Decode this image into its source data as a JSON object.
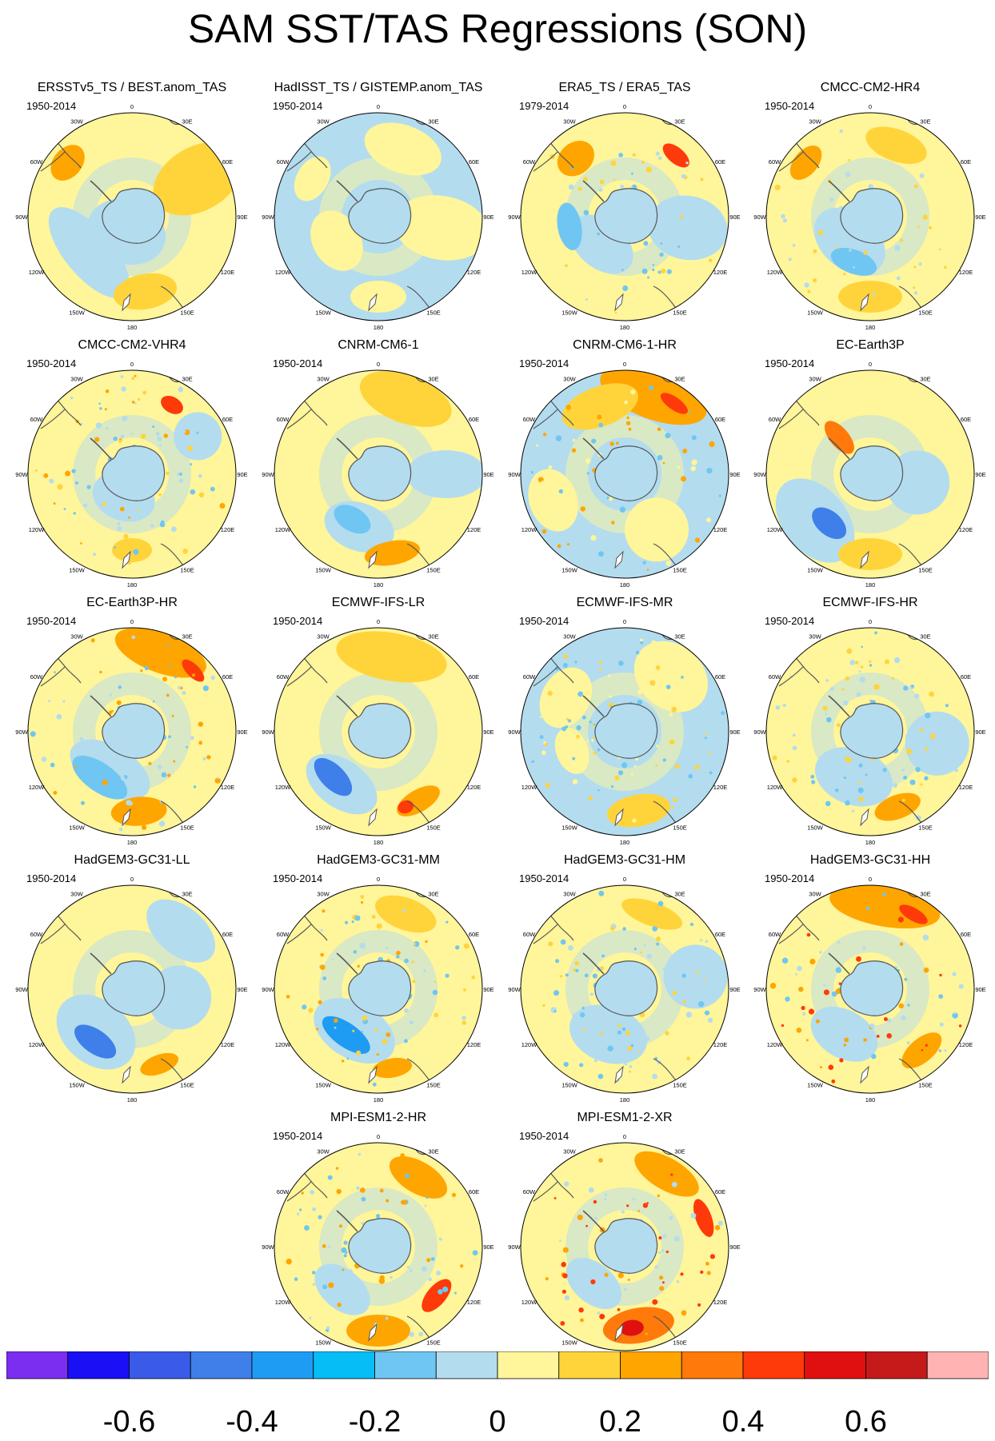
{
  "title": "SAM SST/TAS Regressions (SON)",
  "panels": [
    {
      "id": "ersst",
      "title": "ERSSTv5_TS / BEST.anom_TAS",
      "period": "1950-2014"
    },
    {
      "id": "hadisst",
      "title": "HadISST_TS / GISTEMP.anom_TAS",
      "period": "1950-2014"
    },
    {
      "id": "era5",
      "title": "ERA5_TS / ERA5_TAS",
      "period": "1979-2014"
    },
    {
      "id": "cmcc-hr4",
      "title": "CMCC-CM2-HR4",
      "period": "1950-2014"
    },
    {
      "id": "cmcc-vhr4",
      "title": "CMCC-CM2-VHR4",
      "period": "1950-2014"
    },
    {
      "id": "cnrm",
      "title": "CNRM-CM6-1",
      "period": "1950-2014"
    },
    {
      "id": "cnrm-hr",
      "title": "CNRM-CM6-1-HR",
      "period": "1950-2014"
    },
    {
      "id": "ec-earth3p",
      "title": "EC-Earth3P",
      "period": "1950-2014"
    },
    {
      "id": "ec-earth3p-hr",
      "title": "EC-Earth3P-HR",
      "period": "1950-2014"
    },
    {
      "id": "ecmwf-lr",
      "title": "ECMWF-IFS-LR",
      "period": "1950-2014"
    },
    {
      "id": "ecmwf-mr",
      "title": "ECMWF-IFS-MR",
      "period": "1950-2014"
    },
    {
      "id": "ecmwf-hr",
      "title": "ECMWF-IFS-HR",
      "period": "1950-2014"
    },
    {
      "id": "hadgem-ll",
      "title": "HadGEM3-GC31-LL",
      "period": "1950-2014"
    },
    {
      "id": "hadgem-mm",
      "title": "HadGEM3-GC31-MM",
      "period": "1950-2014"
    },
    {
      "id": "hadgem-hm",
      "title": "HadGEM3-GC31-HM",
      "period": "1950-2014"
    },
    {
      "id": "hadgem-hh",
      "title": "HadGEM3-GC31-HH",
      "period": "1950-2014"
    },
    {
      "id": "mpi-hr",
      "title": "MPI-ESM1-2-HR",
      "period": "1950-2014"
    },
    {
      "id": "mpi-xr",
      "title": "MPI-ESM1-2-XR",
      "period": "1950-2014"
    }
  ],
  "lon_labels": [
    "0",
    "30E",
    "60E",
    "90E",
    "120E",
    "150E",
    "180",
    "150W",
    "120W",
    "90W",
    "60W",
    "30W"
  ],
  "colorbar": {
    "colors": [
      "#7b2ef0",
      "#1a10f5",
      "#3a5ae8",
      "#3f7fea",
      "#1e9cf4",
      "#06bdf6",
      "#6fc6f2",
      "#b3dcef",
      "#fff59a",
      "#ffd43b",
      "#ffa500",
      "#ff7a0a",
      "#ff3a0a",
      "#e01010",
      "#c41a1a",
      "#ffb3b3"
    ],
    "labels": [
      "-0.6",
      "-0.4",
      "-0.2",
      "0",
      "0.2",
      "0.4",
      "0.6"
    ]
  },
  "palette": {
    "ice": "#b3dcef",
    "warm_bg": "#fff59a",
    "coast": "#555555"
  }
}
